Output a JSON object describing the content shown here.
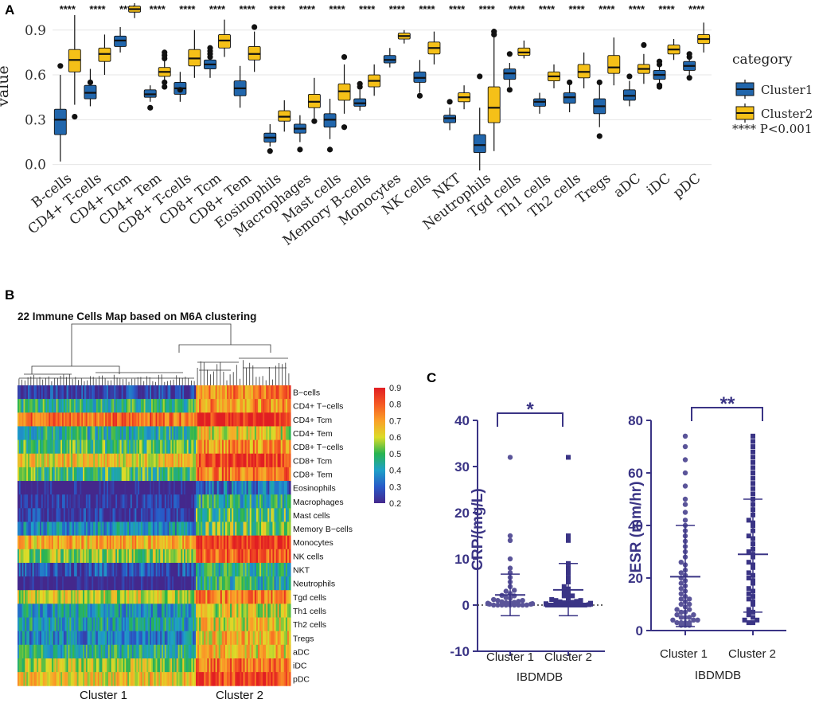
{
  "panels": {
    "a": "A",
    "b": "B",
    "c": "C"
  },
  "chart_data": [
    {
      "id": "boxplot",
      "type": "box",
      "ylabel": "value",
      "ylim": [
        -0.05,
        1.08
      ],
      "yticks": [
        "0.0",
        "0.3",
        "0.6",
        "0.9"
      ],
      "ytick_values": [
        0.0,
        0.3,
        0.6,
        0.9
      ],
      "categories": [
        "B-cells",
        "CD4+ T-cells",
        "CD4+ Tcm",
        "CD4+ Tem",
        "CD8+ T-cells",
        "CD8+ Tcm",
        "CD8+ Tem",
        "Eosinophils",
        "Macrophages",
        "Mast cells",
        "Memory B-cells",
        "Monocytes",
        "NK cells",
        "NKT",
        "Neutrophils",
        "Tgd cells",
        "Th1 cells",
        "Th2 cells",
        "Tregs",
        "aDC",
        "iDC",
        "pDC"
      ],
      "significance": "****",
      "legend": {
        "title": "category",
        "note": "**** P<0.001"
      },
      "series": [
        {
          "name": "Cluster1",
          "color": "#2166ac",
          "stats": [
            [
              0.02,
              0.2,
              0.3,
              0.37,
              0.6
            ],
            [
              0.39,
              0.44,
              0.48,
              0.53,
              0.64
            ],
            [
              0.75,
              0.79,
              0.83,
              0.86,
              0.92
            ],
            [
              0.42,
              0.45,
              0.47,
              0.5,
              0.53
            ],
            [
              0.42,
              0.47,
              0.51,
              0.55,
              0.62
            ],
            [
              0.58,
              0.64,
              0.67,
              0.7,
              0.75
            ],
            [
              0.38,
              0.46,
              0.51,
              0.56,
              0.66
            ],
            [
              0.12,
              0.15,
              0.18,
              0.21,
              0.27
            ],
            [
              0.15,
              0.21,
              0.24,
              0.27,
              0.33
            ],
            [
              0.17,
              0.25,
              0.3,
              0.34,
              0.44
            ],
            [
              0.36,
              0.39,
              0.41,
              0.44,
              0.5
            ],
            [
              0.65,
              0.68,
              0.7,
              0.73,
              0.78
            ],
            [
              0.48,
              0.55,
              0.58,
              0.62,
              0.7
            ],
            [
              0.23,
              0.28,
              0.31,
              0.33,
              0.38
            ],
            [
              -0.04,
              0.08,
              0.13,
              0.2,
              0.38
            ],
            [
              0.52,
              0.57,
              0.61,
              0.64,
              0.68
            ],
            [
              0.34,
              0.39,
              0.42,
              0.44,
              0.48
            ],
            [
              0.35,
              0.41,
              0.45,
              0.48,
              0.55
            ],
            [
              0.25,
              0.34,
              0.39,
              0.44,
              0.55
            ],
            [
              0.39,
              0.43,
              0.46,
              0.5,
              0.56
            ],
            [
              0.53,
              0.57,
              0.6,
              0.63,
              0.69
            ],
            [
              0.58,
              0.63,
              0.66,
              0.69,
              0.74
            ]
          ],
          "outliers": [
            [
              0.66
            ],
            [
              0.55
            ],
            [],
            [
              0.38
            ],
            [
              0.5
            ],
            [
              0.72,
              0.74,
              0.76,
              0.78
            ],
            [],
            [
              0.09
            ],
            [
              0.1
            ],
            [
              0.1
            ],
            [
              0.52,
              0.54
            ],
            [],
            [
              0.46
            ],
            [
              0.42
            ],
            [
              0.59
            ],
            [
              0.5,
              0.74
            ],
            [],
            [
              0.55
            ],
            [
              0.19,
              0.55
            ],
            [
              0.59
            ],
            [
              0.52,
              0.53,
              0.67,
              0.69
            ],
            [
              0.58,
              0.72,
              0.74
            ]
          ]
        },
        {
          "name": "Cluster2",
          "color": "#f5c018",
          "stats": [
            [
              0.4,
              0.62,
              0.7,
              0.77,
              1.0
            ],
            [
              0.6,
              0.69,
              0.74,
              0.78,
              0.87
            ],
            [
              0.98,
              1.02,
              1.04,
              1.06,
              1.08
            ],
            [
              0.53,
              0.59,
              0.62,
              0.65,
              0.7
            ],
            [
              0.58,
              0.66,
              0.71,
              0.77,
              0.9
            ],
            [
              0.72,
              0.78,
              0.83,
              0.87,
              0.97
            ],
            [
              0.62,
              0.7,
              0.74,
              0.79,
              0.89
            ],
            [
              0.22,
              0.29,
              0.32,
              0.36,
              0.43
            ],
            [
              0.31,
              0.38,
              0.42,
              0.47,
              0.58
            ],
            [
              0.34,
              0.43,
              0.49,
              0.54,
              0.67
            ],
            [
              0.46,
              0.52,
              0.56,
              0.6,
              0.67
            ],
            [
              0.81,
              0.84,
              0.86,
              0.88,
              0.9
            ],
            [
              0.67,
              0.74,
              0.78,
              0.82,
              0.89
            ],
            [
              0.37,
              0.42,
              0.45,
              0.48,
              0.53
            ],
            [
              0.09,
              0.28,
              0.38,
              0.52,
              0.86
            ],
            [
              0.71,
              0.73,
              0.75,
              0.78,
              0.83
            ],
            [
              0.51,
              0.56,
              0.59,
              0.62,
              0.67
            ],
            [
              0.51,
              0.58,
              0.62,
              0.67,
              0.75
            ],
            [
              0.53,
              0.61,
              0.65,
              0.73,
              0.85
            ],
            [
              0.54,
              0.61,
              0.64,
              0.67,
              0.74
            ],
            [
              0.7,
              0.74,
              0.77,
              0.8,
              0.84
            ],
            [
              0.75,
              0.81,
              0.84,
              0.87,
              0.95
            ]
          ],
          "outliers": [
            [
              0.32
            ],
            [],
            [],
            [
              0.52,
              0.55,
              0.71,
              0.73,
              0.75
            ],
            [],
            [],
            [
              0.92
            ],
            [],
            [
              0.29
            ],
            [
              0.25,
              0.72
            ],
            [],
            [],
            [],
            [],
            [
              0.89,
              0.87
            ],
            [],
            [],
            [],
            [],
            [
              0.8
            ],
            [],
            []
          ]
        }
      ]
    },
    {
      "id": "heatmap",
      "type": "heatmap",
      "title": "22 Immune Cells Map based on M6A clustering",
      "rows": [
        "B−cells",
        "CD4+ T−cells",
        "CD4+ Tcm",
        "CD4+ Tem",
        "CD8+ T−cells",
        "CD8+ Tcm",
        "CD8+ Tem",
        "Eosinophils",
        "Macrophages",
        "Mast cells",
        "Memory B−cells",
        "Monocytes",
        "NK cells",
        "NKT",
        "Neutrophils",
        "Tgd cells",
        "Th1 cells",
        "Th2 cells",
        "Tregs",
        "aDC",
        "iDC",
        "pDC"
      ],
      "columns": [
        "Cluster 1",
        "Cluster 2"
      ],
      "cluster1_columns": 120,
      "cluster2_columns": 58,
      "row_means": [
        [
          0.25,
          0.75
        ],
        [
          0.47,
          0.72
        ],
        [
          0.78,
          0.88
        ],
        [
          0.45,
          0.62
        ],
        [
          0.5,
          0.72
        ],
        [
          0.64,
          0.85
        ],
        [
          0.5,
          0.76
        ],
        [
          0.18,
          0.33
        ],
        [
          0.22,
          0.45
        ],
        [
          0.24,
          0.5
        ],
        [
          0.38,
          0.53
        ],
        [
          0.68,
          0.86
        ],
        [
          0.55,
          0.8
        ],
        [
          0.28,
          0.46
        ],
        [
          0.18,
          0.45
        ],
        [
          0.6,
          0.75
        ],
        [
          0.4,
          0.6
        ],
        [
          0.42,
          0.62
        ],
        [
          0.36,
          0.66
        ],
        [
          0.45,
          0.65
        ],
        [
          0.58,
          0.77
        ],
        [
          0.64,
          0.84
        ]
      ],
      "colorbar_ticks": [
        "0.9",
        "0.8",
        "0.7",
        "0.6",
        "0.5",
        "0.4",
        "0.3",
        "0.2"
      ],
      "colorbar_values": [
        0.9,
        0.8,
        0.7,
        0.6,
        0.5,
        0.4,
        0.3,
        0.2
      ]
    },
    {
      "id": "crp",
      "type": "scatter",
      "ylabel": "CRP/(mg/L)",
      "xlabel": "IBDMDB",
      "categories": [
        "Cluster 1",
        "Cluster 2"
      ],
      "ylim": [
        -10,
        40
      ],
      "yticks": [
        "-10",
        "0",
        "10",
        "20",
        "30",
        "40"
      ],
      "ytick_values": [
        -10,
        0,
        10,
        20,
        30,
        40
      ],
      "significance": "*",
      "means": [
        2.2,
        3.3
      ],
      "sd_upper": [
        6.7,
        9.0
      ],
      "sd_lower": [
        -2.3,
        -2.3
      ],
      "points": [
        [
          0,
          0,
          0,
          0,
          0,
          0,
          0,
          0,
          0,
          0.2,
          0.2,
          0.3,
          0.3,
          0.4,
          0.5,
          0.5,
          0.6,
          0.7,
          0.8,
          1.0,
          1.0,
          1.2,
          1.5,
          1.6,
          2.0,
          2.1,
          2.5,
          3.0,
          3.2,
          4.0,
          5.0,
          6.0,
          7.0,
          8.0,
          10.0,
          14.0,
          15.0,
          32.0
        ],
        [
          0,
          0,
          0,
          0,
          0,
          0,
          0,
          0,
          0,
          0,
          0.1,
          0.2,
          0.2,
          0.3,
          0.4,
          0.5,
          0.5,
          0.6,
          0.7,
          0.8,
          1.0,
          1.0,
          1.2,
          1.5,
          2.0,
          2.0,
          2.5,
          3.0,
          3.5,
          4.0,
          5.0,
          6.0,
          7.0,
          8.0,
          9.0,
          14.0,
          15.0,
          32.0
        ]
      ]
    },
    {
      "id": "esr",
      "type": "scatter",
      "ylabel": "ESR (mm/hr)",
      "xlabel": "IBDMDB",
      "categories": [
        "Cluster 1",
        "Cluster 2"
      ],
      "ylim": [
        0,
        80
      ],
      "yticks": [
        "0",
        "20",
        "40",
        "60",
        "80"
      ],
      "ytick_values": [
        0,
        20,
        40,
        60,
        80
      ],
      "significance": "**",
      "means": [
        20.5,
        29.0
      ],
      "sd_upper": [
        40.0,
        50.0
      ],
      "sd_lower": [
        1.5,
        7.0
      ],
      "points": [
        [
          2,
          2,
          2,
          3,
          3,
          3,
          3,
          4,
          4,
          4,
          5,
          5,
          5,
          6,
          6,
          7,
          7,
          8,
          8,
          9,
          10,
          10,
          11,
          12,
          12,
          13,
          14,
          15,
          16,
          17,
          18,
          19,
          20,
          21,
          22,
          23,
          25,
          26,
          28,
          30,
          32,
          34,
          36,
          38,
          40,
          42,
          45,
          48,
          50,
          55,
          60,
          65,
          70,
          74
        ],
        [
          3,
          3,
          4,
          4,
          5,
          6,
          7,
          8,
          10,
          11,
          12,
          13,
          14,
          15,
          16,
          18,
          19,
          20,
          21,
          22,
          24,
          25,
          26,
          28,
          29,
          30,
          31,
          33,
          35,
          36,
          38,
          40,
          41,
          42,
          44,
          46,
          48,
          50,
          52,
          54,
          56,
          58,
          60,
          62,
          64,
          66,
          68,
          70,
          72,
          74
        ]
      ]
    }
  ]
}
